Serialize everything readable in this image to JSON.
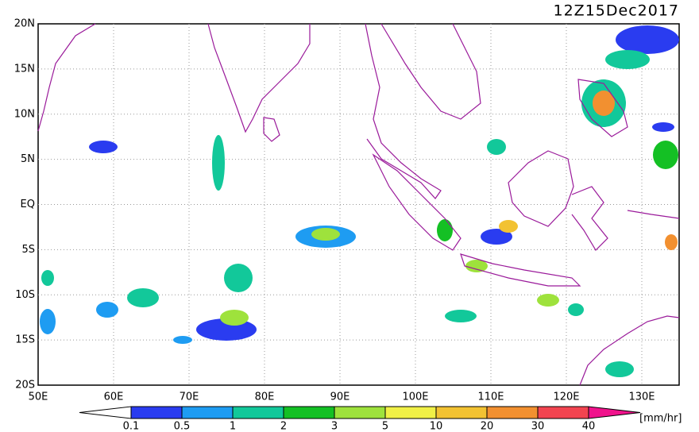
{
  "header": {
    "title": "12Z15Dec2017"
  },
  "map": {
    "lat_labels": [
      "20N",
      "15N",
      "10N",
      "5N",
      "EQ",
      "5S",
      "10S",
      "15S",
      "20S"
    ],
    "lon_labels": [
      "50E",
      "60E",
      "70E",
      "80E",
      "90E",
      "100E",
      "110E",
      "120E",
      "130E"
    ]
  },
  "colorbar": {
    "labels": [
      "0.1",
      "0.5",
      "1",
      "2",
      "3",
      "5",
      "10",
      "20",
      "30",
      "40"
    ],
    "colors": [
      "#ffffff",
      "#2a3cf0",
      "#1e9cf2",
      "#12c89a",
      "#14c024",
      "#9ee23c",
      "#f0f046",
      "#f2c232",
      "#f29030",
      "#f24450",
      "#f0128c"
    ],
    "unit": "[mm/hr]"
  }
}
